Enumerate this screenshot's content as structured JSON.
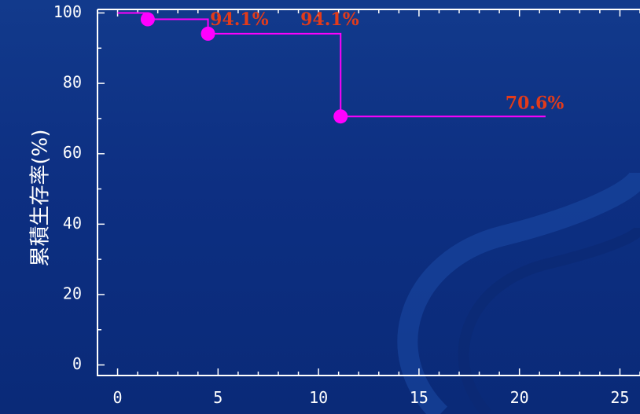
{
  "chart_data": {
    "type": "line",
    "title": "",
    "xlabel": "",
    "ylabel": "累積生存率(%)",
    "xlim": [
      -1,
      26
    ],
    "ylim": [
      -3,
      101
    ],
    "x_ticks": [
      0,
      5,
      10,
      15,
      20,
      25
    ],
    "y_ticks": [
      0,
      20,
      40,
      60,
      80,
      100
    ],
    "grid": false,
    "series": [
      {
        "color": "#ff00ff",
        "step_x": [
          0,
          1.5,
          1.5,
          4.5,
          4.5,
          11.1,
          11.1,
          21.3
        ],
        "step_y": [
          100,
          100,
          98.2,
          98.2,
          94.1,
          94.1,
          70.6,
          70.6
        ],
        "points": [
          {
            "x": 1.5,
            "y": 98.2
          },
          {
            "x": 4.5,
            "y": 94.1
          },
          {
            "x": 11.1,
            "y": 70.6
          }
        ]
      }
    ],
    "annotations": [
      {
        "text": "94.1%",
        "x": 4.6,
        "y": 96.5
      },
      {
        "text": "94.1%",
        "x": 9.1,
        "y": 96.5
      },
      {
        "text": "70.6%",
        "x": 19.3,
        "y": 72.8
      }
    ]
  }
}
